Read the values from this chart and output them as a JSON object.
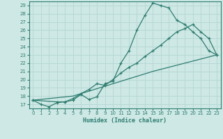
{
  "xlabel": "Humidex (Indice chaleur)",
  "xlim": [
    -0.5,
    23.5
  ],
  "ylim": [
    16.5,
    29.5
  ],
  "yticks": [
    17,
    18,
    19,
    20,
    21,
    22,
    23,
    24,
    25,
    26,
    27,
    28,
    29
  ],
  "xticks": [
    0,
    1,
    2,
    3,
    4,
    5,
    6,
    7,
    8,
    9,
    10,
    11,
    12,
    13,
    14,
    15,
    16,
    17,
    18,
    19,
    20,
    21,
    22,
    23
  ],
  "bg_color": "#cde8e5",
  "line_color": "#2e7d70",
  "grid_color": "#b8d8d5",
  "curve1_x": [
    0,
    1,
    2,
    3,
    4,
    5,
    6,
    7,
    8,
    9,
    10,
    11,
    12,
    13,
    14,
    15,
    16,
    17,
    18,
    19,
    20,
    21,
    22,
    23
  ],
  "curve1_y": [
    17.5,
    17.0,
    16.7,
    17.2,
    17.3,
    17.5,
    18.2,
    17.6,
    17.9,
    19.5,
    19.8,
    22.0,
    23.5,
    26.0,
    27.8,
    29.3,
    29.0,
    28.7,
    27.2,
    26.7,
    25.8,
    25.0,
    23.5,
    23.0
  ],
  "curve2_x": [
    0,
    3,
    4,
    5,
    6,
    7,
    8,
    9,
    10,
    11,
    12,
    13,
    14,
    15,
    16,
    17,
    18,
    19,
    20,
    21,
    22,
    23
  ],
  "curve2_y": [
    17.5,
    17.3,
    17.3,
    17.7,
    18.3,
    18.8,
    19.5,
    19.3,
    20.0,
    20.8,
    21.5,
    22.0,
    22.8,
    23.5,
    24.2,
    25.0,
    25.8,
    26.2,
    26.7,
    25.8,
    25.0,
    23.0
  ],
  "curve3_x": [
    0,
    23
  ],
  "curve3_y": [
    17.5,
    23.0
  ],
  "curve3_mid_x": [
    0,
    5,
    10,
    15,
    23
  ],
  "curve3_mid_y": [
    17.5,
    18.0,
    19.5,
    21.0,
    23.0
  ]
}
